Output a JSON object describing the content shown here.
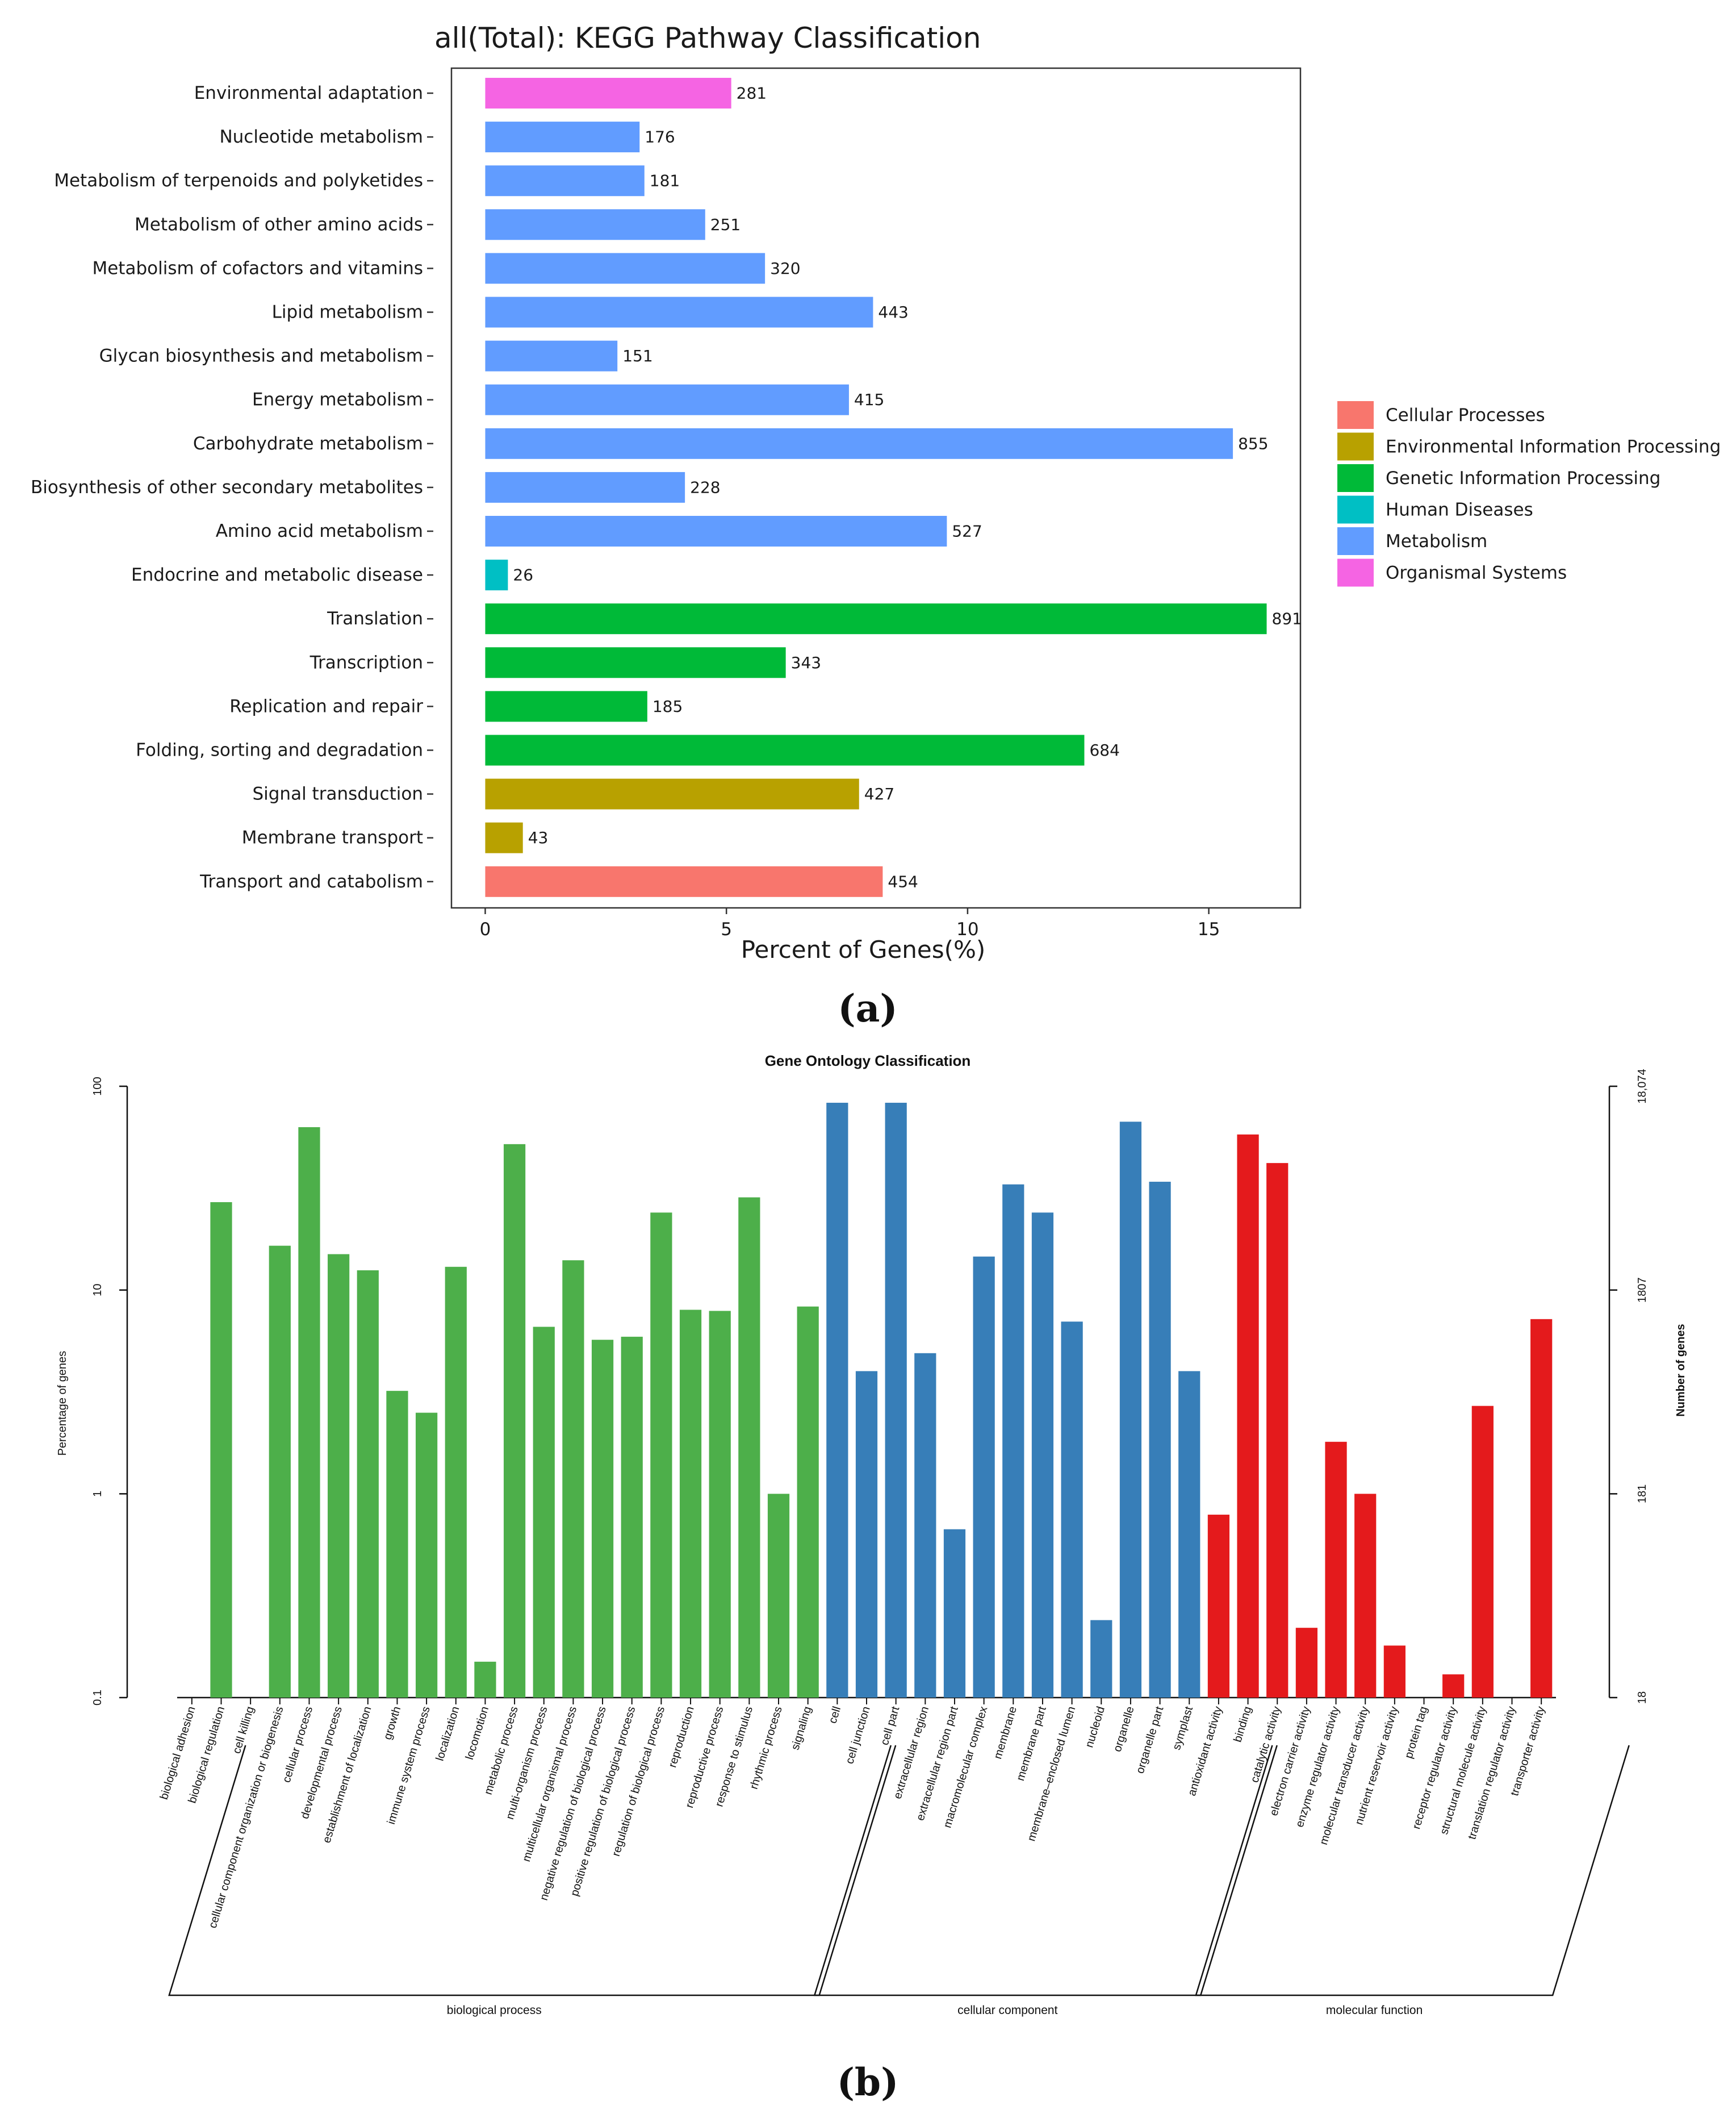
{
  "figure_labels": {
    "a": "(a)",
    "b": "(b)"
  },
  "colors": {
    "Cellular Processes": "#f8766d",
    "Environmental Information Processing": "#b8a100",
    "Genetic Information Processing": "#00ba38",
    "Human Diseases": "#00bfc4",
    "Metabolism": "#619cff",
    "Organismal Systems": "#f564e3",
    "biological process": "#4daf4a",
    "cellular component": "#377eb8",
    "molecular function": "#e41a1c"
  },
  "chart_data": [
    {
      "type": "bar",
      "orientation": "horizontal",
      "title": "all(Total): KEGG Pathway Classification",
      "xlabel": "Percent of Genes(%)",
      "ylabel": "",
      "xlim": [
        -0.7,
        16.9
      ],
      "xticks": [
        0,
        5,
        10,
        15
      ],
      "grid": false,
      "legend_position": "right",
      "legend": [
        "Cellular Processes",
        "Environmental Information Processing",
        "Genetic Information Processing",
        "Human Diseases",
        "Metabolism",
        "Organismal Systems"
      ],
      "categories": [
        "Environmental adaptation",
        "Nucleotide metabolism",
        "Metabolism of terpenoids and polyketides",
        "Metabolism of other amino acids",
        "Metabolism of cofactors and vitamins",
        "Lipid metabolism",
        "Glycan biosynthesis and metabolism",
        "Energy metabolism",
        "Carbohydrate metabolism",
        "Biosynthesis of other secondary metabolites",
        "Amino acid metabolism",
        "Endocrine and metabolic disease",
        "Translation",
        "Transcription",
        "Replication and repair",
        "Folding, sorting and degradation",
        "Signal transduction",
        "Membrane transport",
        "Transport and catabolism"
      ],
      "groups": [
        "Organismal Systems",
        "Metabolism",
        "Metabolism",
        "Metabolism",
        "Metabolism",
        "Metabolism",
        "Metabolism",
        "Metabolism",
        "Metabolism",
        "Metabolism",
        "Metabolism",
        "Human Diseases",
        "Genetic Information Processing",
        "Genetic Information Processing",
        "Genetic Information Processing",
        "Genetic Information Processing",
        "Environmental Information Processing",
        "Environmental Information Processing",
        "Cellular Processes"
      ],
      "values": [
        5.1,
        3.2,
        3.3,
        4.56,
        5.8,
        8.04,
        2.74,
        7.54,
        15.5,
        4.14,
        9.57,
        0.47,
        16.2,
        6.23,
        3.36,
        12.42,
        7.75,
        0.78,
        8.24
      ],
      "data_labels": [
        "281",
        "176",
        "181",
        "251",
        "320",
        "443",
        "151",
        "415",
        "855",
        "228",
        "527",
        "26",
        "891",
        "343",
        "185",
        "684",
        "427",
        "43",
        "454"
      ]
    },
    {
      "type": "bar",
      "title": "Gene Ontology Classification",
      "ylabel": "Percentage of genes",
      "y2label": "Number of genes",
      "yscale": "log",
      "ylim": [
        0.1,
        100
      ],
      "yticks": [
        "100",
        "10",
        "1",
        "0.1"
      ],
      "y2ticks": [
        "18,074",
        "1807",
        "181",
        "18"
      ],
      "grid": false,
      "groups": [
        {
          "name": "biological process",
          "categories": [
            "biological adhesion",
            "biological regulation",
            "cell killing",
            "cellular component organization or biogenesis",
            "cellular process",
            "developmental process",
            "establishment of localization",
            "growth",
            "immune system process",
            "localization",
            "locomotion",
            "metabolic process",
            "multi-organism process",
            "multicellular organismal process",
            "negative regulation of biological process",
            "positive regulation of biological process",
            "regulation of biological process",
            "reproduction",
            "reproductive process",
            "response to stimulus",
            "rhythmic process",
            "signaling"
          ],
          "values": [
            0,
            27,
            0,
            16.5,
            63,
            15,
            12.5,
            3.2,
            2.5,
            13,
            0.15,
            52,
            6.6,
            14,
            5.7,
            5.9,
            24,
            8,
            7.9,
            28.5,
            1,
            8.3
          ]
        },
        {
          "name": "cellular component",
          "categories": [
            "cell",
            "cell junction",
            "cell part",
            "extracellular region",
            "extracellular region part",
            "macromolecular complex",
            "membrane",
            "membrane part",
            "membrane–enclosed lumen",
            "nucleoid",
            "organelle",
            "organelle part",
            "symplast"
          ],
          "values": [
            83,
            4,
            83,
            4.9,
            0.67,
            14.6,
            33,
            24,
            7,
            0.24,
            67,
            34,
            4
          ]
        },
        {
          "name": "molecular function",
          "categories": [
            "antioxidant activity",
            "binding",
            "catalytic activity",
            "electron carrier activity",
            "enzyme regulator activity",
            "molecular transducer activity",
            "nutrient reservoir activity",
            "protein tag",
            "receptor regulator activity",
            "structural molecule activity",
            "translation regulator activity",
            "transporter activity"
          ],
          "values": [
            0.79,
            58,
            42,
            0.22,
            1.8,
            1,
            0.18,
            0,
            0.13,
            2.7,
            0,
            7.2
          ]
        }
      ]
    }
  ]
}
